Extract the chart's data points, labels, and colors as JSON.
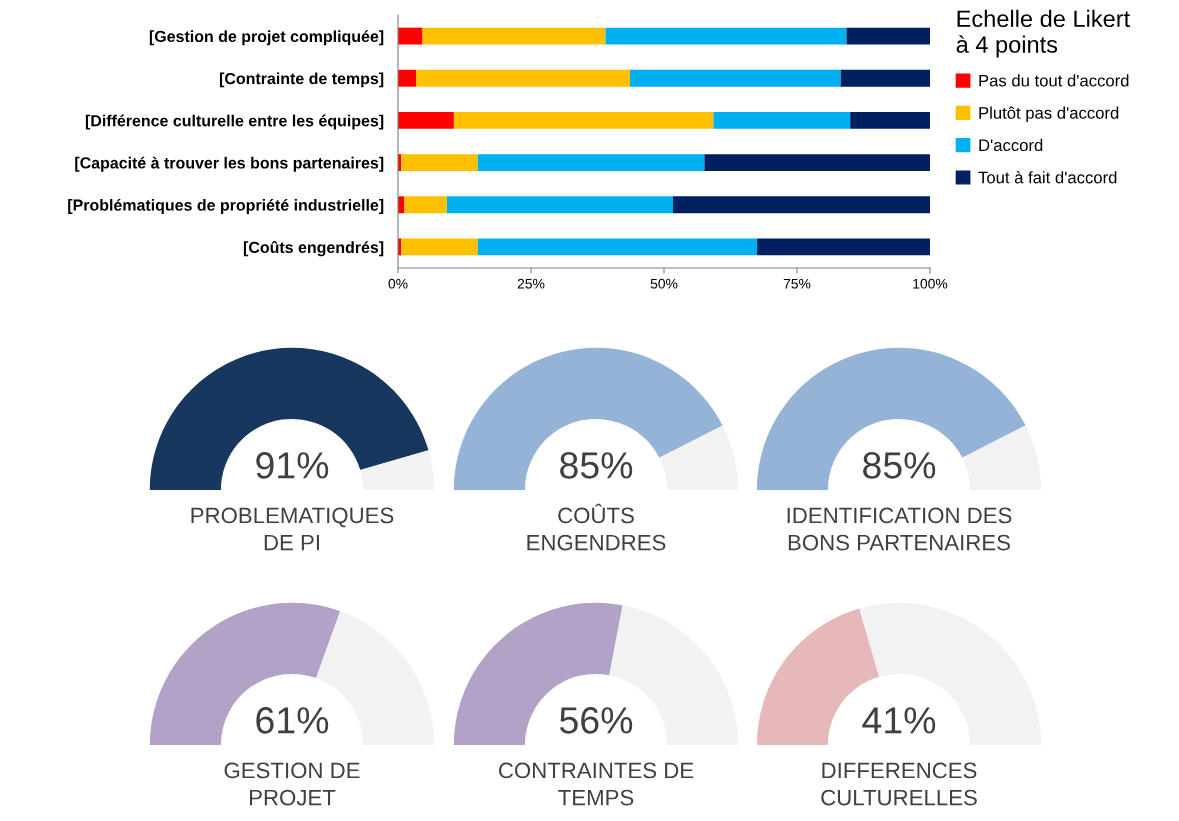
{
  "chart_data": [
    {
      "type": "bar",
      "orientation": "horizontal",
      "stacked": true,
      "legend": "right",
      "legend_title": "Echelle de Likert\nà 4 points",
      "grid": false,
      "categories": [
        "[Gestion de projet compliquée]",
        "[Contrainte de temps]",
        "[Différence culturelle entre les équipes]",
        "[Capacité à trouver les bons partenaires]",
        "[Problématiques de propriété industrielle]",
        "[Coûts engendrés]"
      ],
      "xlim": [
        0,
        100
      ],
      "xticks": [
        {
          "value": 0,
          "label": "0%"
        },
        {
          "value": 25,
          "label": "25%"
        },
        {
          "value": 50,
          "label": "50%"
        },
        {
          "value": 75,
          "label": "75%"
        },
        {
          "value": 100,
          "label": "100%"
        }
      ],
      "series": [
        {
          "name": "Pas du tout d'accord",
          "color": "#ff0000",
          "values": [
            4.6,
            3.4,
            10.5,
            0.6,
            1.2,
            0.6
          ]
        },
        {
          "name": "Plutôt pas d'accord",
          "color": "#ffc000",
          "values": [
            34.4,
            40.2,
            48.8,
            14.4,
            8.0,
            14.4
          ]
        },
        {
          "name": "D'accord",
          "color": "#00b0f0",
          "values": [
            45.3,
            39.6,
            25.7,
            42.6,
            42.5,
            52.5
          ]
        },
        {
          "name": "Tout à fait d'accord",
          "color": "#002060",
          "values": [
            15.7,
            16.8,
            15.0,
            42.4,
            48.3,
            32.5
          ]
        }
      ]
    },
    {
      "type": "donut",
      "title": "PROBLEMATIQUES\nDE PI",
      "categories": [
        null,
        null
      ],
      "values": [
        91,
        9
      ],
      "colors": [
        "#17375e",
        "#f2f2f2"
      ],
      "annotations": [
        "91%"
      ]
    },
    {
      "type": "donut",
      "title": "COÛTS\nENGENDRES",
      "categories": [
        null,
        null
      ],
      "values": [
        85,
        15
      ],
      "colors": [
        "#95b3d7",
        "#f2f2f2"
      ],
      "annotations": [
        "85%"
      ]
    },
    {
      "type": "donut",
      "title": "IDENTIFICATION DES\nBONS PARTENAIRES",
      "categories": [
        null,
        null
      ],
      "values": [
        85,
        15
      ],
      "colors": [
        "#95b3d7",
        "#f2f2f2"
      ],
      "annotations": [
        "85%"
      ]
    },
    {
      "type": "donut",
      "title": "GESTION DE\nPROJET",
      "categories": [
        null,
        null
      ],
      "values": [
        61,
        39
      ],
      "colors": [
        "#b3a2c7",
        "#f2f2f2"
      ],
      "annotations": [
        "61%"
      ]
    },
    {
      "type": "donut",
      "title": "CONTRAINTES DE\nTEMPS",
      "categories": [
        null,
        null
      ],
      "values": [
        56,
        44
      ],
      "colors": [
        "#b3a2c7",
        "#f2f2f2"
      ],
      "annotations": [
        "56%"
      ]
    },
    {
      "type": "donut",
      "title": "DIFFERENCES\nCULTURELLES",
      "categories": [
        null,
        null
      ],
      "values": [
        41,
        59
      ],
      "colors": [
        "#e6b9b8",
        "#f2f2f2"
      ],
      "annotations": [
        "41%"
      ]
    }
  ]
}
